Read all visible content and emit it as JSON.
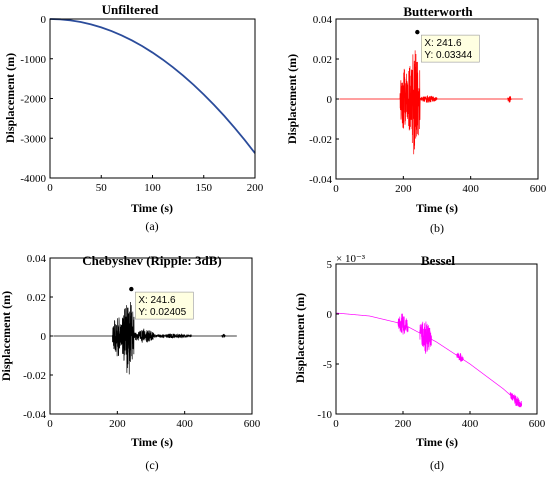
{
  "chart_data": [
    {
      "id": "a",
      "type": "line",
      "title": "Unfiltered",
      "caption": "(a)",
      "xlabel": "Time (s)",
      "ylabel": "Displacement (m)",
      "xlim": [
        0,
        200
      ],
      "ylim": [
        -4000,
        0
      ],
      "xticks": [
        0,
        50,
        100,
        150,
        200
      ],
      "yticks": [
        -4000,
        -3000,
        -2000,
        -1000,
        0
      ],
      "tick_labels_x": [
        "0",
        "50",
        "100",
        "150",
        "200"
      ],
      "tick_labels_y": [
        "-4000",
        "-3000",
        "-2000",
        "-1000",
        "0"
      ],
      "series": [
        {
          "color": "#2b4c9b",
          "x": [
            0,
            10,
            20,
            30,
            40,
            50,
            60,
            70,
            80,
            90,
            100,
            110,
            120,
            130,
            140,
            150,
            160,
            170,
            180,
            190,
            200
          ],
          "y": [
            0,
            -8,
            -34,
            -76,
            -135,
            -211,
            -304,
            -413,
            -540,
            -683,
            -844,
            -1021,
            -1215,
            -1426,
            -1654,
            -1899,
            -2160,
            -2438,
            -2734,
            -3046,
            -3375
          ]
        }
      ]
    },
    {
      "id": "b",
      "type": "line",
      "title": "Butterworth",
      "caption": "(b)",
      "xlabel": "Time (s)",
      "ylabel": "Displacement (m)",
      "xlim": [
        0,
        600
      ],
      "ylim": [
        -0.04,
        0.04
      ],
      "xticks": [
        0,
        200,
        400,
        600
      ],
      "yticks": [
        -0.04,
        -0.02,
        0,
        0.02,
        0.04
      ],
      "tick_labels_x": [
        "0",
        "200",
        "400",
        "600"
      ],
      "tick_labels_y": [
        "-0.04",
        "-0.02",
        "0",
        "0.02",
        "0.04"
      ],
      "series": [
        {
          "color": "#ff0000",
          "baseline": 0,
          "bursts": [
            {
              "x_start": 190,
              "x_end": 215,
              "amplitude": 0.018
            },
            {
              "x_start": 215,
              "x_end": 250,
              "amplitude": 0.03
            },
            {
              "x_start": 250,
              "x_end": 300,
              "amplitude": 0.002
            },
            {
              "x_start": 510,
              "x_end": 520,
              "amplitude": 0.002
            }
          ],
          "x_start": 10,
          "x_end": 555
        }
      ],
      "datatip": {
        "x": 241.6,
        "y": 0.03344,
        "line1": "X: 241.6",
        "line2": "Y: 0.03344"
      }
    },
    {
      "id": "c",
      "type": "line",
      "title": "Chebyshev (Ripple: 3dB)",
      "caption": "(c)",
      "xlabel": "Time (s)",
      "ylabel": "Displacement (m)",
      "xlim": [
        0,
        600
      ],
      "ylim": [
        -0.04,
        0.04
      ],
      "xticks": [
        0,
        200,
        400,
        600
      ],
      "yticks": [
        -0.04,
        -0.02,
        0,
        0.02,
        0.04
      ],
      "tick_labels_x": [
        "0",
        "200",
        "400",
        "600"
      ],
      "tick_labels_y": [
        "-0.04",
        "-0.02",
        "0",
        "0.02",
        "0.04"
      ],
      "series": [
        {
          "color": "#000000",
          "baseline": 0,
          "bursts": [
            {
              "x_start": 185,
              "x_end": 215,
              "amplitude": 0.012
            },
            {
              "x_start": 215,
              "x_end": 250,
              "amplitude": 0.022
            },
            {
              "x_start": 250,
              "x_end": 310,
              "amplitude": 0.004
            },
            {
              "x_start": 310,
              "x_end": 420,
              "amplitude": 0.0012
            },
            {
              "x_start": 510,
              "x_end": 520,
              "amplitude": 0.0015
            }
          ],
          "x_start": 10,
          "x_end": 555
        }
      ],
      "datatip": {
        "x": 241.6,
        "y": 0.02405,
        "line1": "X: 241.6",
        "line2": "Y: 0.02405"
      }
    },
    {
      "id": "d",
      "type": "line",
      "title": "Bessel",
      "caption": "(d)",
      "xlabel": "Time (s)",
      "ylabel": "Displacement (m)",
      "xlim": [
        0,
        600
      ],
      "ylim": [
        -0.01,
        0.005
      ],
      "xticks": [
        0,
        200,
        400,
        600
      ],
      "yticks": [
        -0.01,
        -0.005,
        0,
        0.005
      ],
      "tick_labels_x": [
        "0",
        "200",
        "400",
        "600"
      ],
      "tick_labels_y": [
        "-10",
        "-5",
        "0",
        "5"
      ],
      "exponent_label": "× 10⁻³",
      "series": [
        {
          "color": "#ff00ff",
          "trend": [
            [
              0,
              0.0001
            ],
            [
              100,
              -0.0002
            ],
            [
              200,
              -0.001
            ],
            [
              300,
              -0.0028
            ],
            [
              400,
              -0.005
            ],
            [
              500,
              -0.0075
            ],
            [
              550,
              -0.009
            ]
          ],
          "bursts": [
            {
              "x_start": 185,
              "x_end": 215,
              "amplitude": 0.0012
            },
            {
              "x_start": 250,
              "x_end": 285,
              "amplitude": 0.0018
            },
            {
              "x_start": 360,
              "x_end": 380,
              "amplitude": 0.0005
            },
            {
              "x_start": 520,
              "x_end": 555,
              "amplitude": 0.0006
            }
          ],
          "x_start": 0,
          "x_end": 555
        }
      ]
    }
  ]
}
